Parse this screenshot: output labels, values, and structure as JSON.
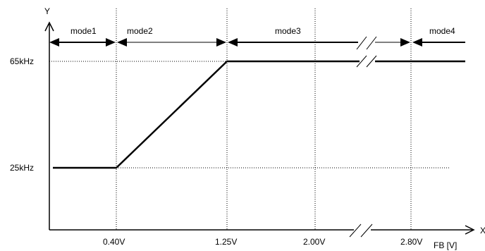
{
  "chart_data": {
    "type": "line",
    "xlabel": "FB [V]",
    "ylabel": "Y",
    "x_axis_arrow_label": "X",
    "x_ticks": [
      "0.40V",
      "1.25V",
      "2.00V",
      "2.80V"
    ],
    "y_ticks": [
      "25kHz",
      "65kHz"
    ],
    "modes": [
      {
        "label": "mode1",
        "from": "0",
        "to": "0.40V"
      },
      {
        "label": "mode2",
        "from": "0.40V",
        "to": "1.25V"
      },
      {
        "label": "mode3",
        "from": "1.25V",
        "to": "2.80V"
      },
      {
        "label": "mode4",
        "from": "2.80V",
        "to": ""
      }
    ],
    "series": [
      {
        "points": [
          {
            "x": 0,
            "y": 25
          },
          {
            "x": 0.4,
            "y": 25
          },
          {
            "x": 1.25,
            "y": 65
          },
          {
            "x": 2.8,
            "y": 65
          },
          {
            "x": 3.2,
            "y": 65
          }
        ]
      }
    ],
    "axis_break": true,
    "grid": "dotted guide lines"
  }
}
